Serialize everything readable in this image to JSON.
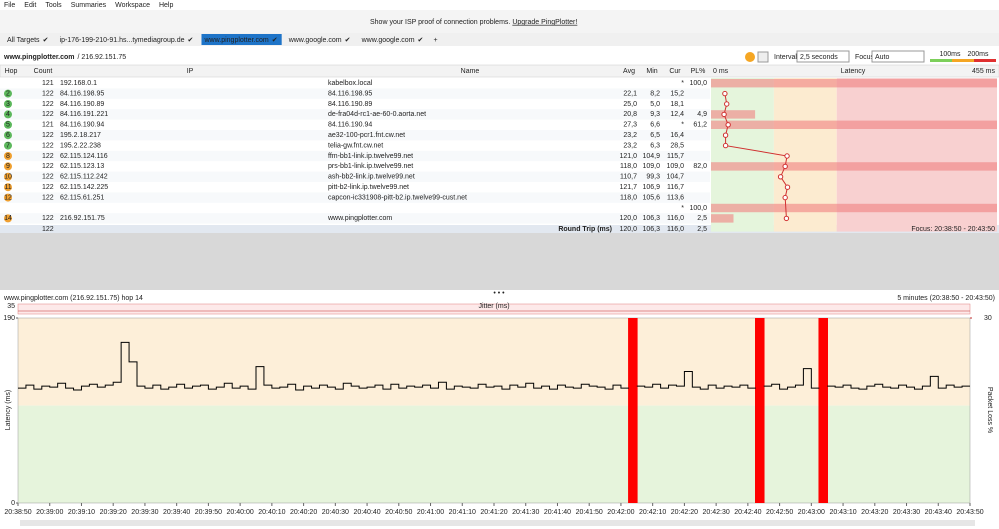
{
  "menu": [
    "File",
    "Edit",
    "Tools",
    "Summaries",
    "Workspace",
    "Help"
  ],
  "banner": {
    "text": "Show your ISP proof of connection problems.",
    "link": "Upgrade PingPlotter!"
  },
  "tabs": [
    "All Targets",
    "ip-176-199-210-91.hs...tymediagroup.de",
    "www.pingplotter.com",
    "www.google.com",
    "www.google.com"
  ],
  "new_tab": "+",
  "target": {
    "host": "www.pingplotter.com",
    "ip": "/ 216.92.151.75"
  },
  "toolbar": {
    "interval_label": "Interval",
    "interval": "2,5 seconds",
    "focus_label": "Focus",
    "focus": "Auto",
    "thresholds": [
      {
        "value": 100,
        "label": "100ms"
      },
      {
        "value": 200,
        "label": "200ms"
      }
    ]
  },
  "table": {
    "headers": [
      "Hop",
      "Count",
      "IP",
      "Name",
      "Avg",
      "Min",
      "Cur",
      "PL%",
      "Latency"
    ],
    "latency_axis": [
      {
        "value": 0,
        "label": "0 ms"
      },
      {
        "value": 455,
        "label": "455 ms"
      }
    ],
    "rows": [
      [
        null,
        "121",
        "192.168.0.1",
        "kabelbox.local",
        null,
        null,
        "*",
        "100,0"
      ],
      [
        "2",
        "122",
        "84.116.198.95",
        "84.116.198.95",
        "22,1",
        "8,2",
        "15,2",
        null
      ],
      [
        "3",
        "122",
        "84.116.190.89",
        "84.116.190.89",
        "25,0",
        "5,0",
        "18,1",
        null
      ],
      [
        "4",
        "122",
        "84.116.191.221",
        "de-fra04d-rc1-ae-60-0.aorta.net",
        "20,8",
        "9,3",
        "12,4",
        "4,9"
      ],
      [
        "5",
        "121",
        "84.116.190.94",
        "84.116.190.94",
        "27,3",
        "6,6",
        "*",
        "61,2"
      ],
      [
        "6",
        "122",
        "195.2.18.217",
        "ae32-100-pcr1.fnt.cw.net",
        "23,2",
        "6,5",
        "16,4",
        null
      ],
      [
        "7",
        "122",
        "195.2.22.238",
        "telia-gw.fnt.cw.net",
        "23,2",
        "6,3",
        "28,5",
        null
      ],
      [
        "8",
        "122",
        "62.115.124.116",
        "ffm-bb1-link.ip.twelve99.net",
        "121,0",
        "104,9",
        "115,7",
        null
      ],
      [
        "9",
        "122",
        "62.115.123.13",
        "prs-bb1-link.ip.twelve99.net",
        "118,0",
        "109,0",
        "109,0",
        "82,0"
      ],
      [
        "10",
        "122",
        "62.115.112.242",
        "ash-bb2-link.ip.twelve99.net",
        "110,7",
        "99,3",
        "104,7",
        null
      ],
      [
        "11",
        "122",
        "62.115.142.225",
        "pitt-b2-link.ip.twelve99.net",
        "121,7",
        "106,9",
        "116,7",
        null
      ],
      [
        "12",
        "122",
        "62.115.61.251",
        "capcon-ic331908-pitt-b2.ip.twelve99-cust.net",
        "118,0",
        "105,6",
        "113,6",
        null
      ],
      [
        null,
        null,
        null,
        null,
        null,
        null,
        "*",
        "100,0"
      ],
      [
        "14",
        "122",
        "216.92.151.75",
        "www.pingplotter.com",
        "120,0",
        "106,3",
        "116,0",
        "2,5"
      ]
    ],
    "summary": {
      "count": "122",
      "label": "Round Trip (ms)",
      "avg": "120,0",
      "min": "106,3",
      "cur": "116,0",
      "pl": "2,5",
      "focus": "Focus: 20:38:50 - 20:43:50"
    }
  },
  "chart_data": {
    "type": "line",
    "title": "www.pingplotter.com (216.92.151.75) hop 14",
    "subtitle": "5 minutes (20:38:50 - 20:43:50)",
    "y_label": "Latency (ms)",
    "y2_label": "Packet Loss %",
    "jitter_label": "Jitter (ms)",
    "jitter_max": 35,
    "ylim": [
      0,
      190
    ],
    "yticks": [
      0,
      190
    ],
    "y2lim": [
      0,
      30
    ],
    "y2ticks": [
      30
    ],
    "x_ticks": [
      "20:38:50",
      "20:39:00",
      "20:39:10",
      "20:39:20",
      "20:39:30",
      "20:39:40",
      "20:39:50",
      "20:40:00",
      "20:40:10",
      "20:40:20",
      "20:40:30",
      "20:40:40",
      "20:40:50",
      "20:41:00",
      "20:41:10",
      "20:41:20",
      "20:41:30",
      "20:41:40",
      "20:41:50",
      "20:42:00",
      "20:42:10",
      "20:42:20",
      "20:42:30",
      "20:42:40",
      "20:42:50",
      "20:43:00",
      "20:43:10",
      "20:43:20",
      "20:43:30",
      "20:43:40",
      "20:43:50"
    ],
    "latency": {
      "color": "#000000",
      "values": [
        118,
        121,
        117,
        120,
        119,
        123,
        118,
        116,
        120,
        122,
        119,
        121,
        124,
        165,
        145,
        120,
        118,
        121,
        117,
        119,
        122,
        118,
        120,
        121,
        117,
        119,
        123,
        118,
        120,
        117,
        140,
        121,
        118,
        119,
        122,
        116,
        120,
        118,
        121,
        119,
        117,
        123,
        120,
        118,
        119,
        121,
        117,
        122,
        118,
        120,
        119,
        121,
        118,
        124,
        117,
        120,
        119,
        118,
        122,
        119,
        120,
        117,
        121,
        119,
        123,
        118,
        120,
        117,
        121,
        119,
        118,
        122,
        120,
        119,
        117,
        121,
        118,
        null,
        120,
        119,
        122,
        118,
        121,
        120,
        135,
        119,
        117,
        121,
        118,
        120,
        119,
        121,
        118,
        null,
        120,
        122,
        117,
        119,
        121,
        138,
        118,
        null,
        120,
        119,
        121,
        118,
        117,
        120,
        122,
        119,
        118,
        121,
        119,
        117,
        120,
        130,
        118,
        121,
        119,
        120
      ]
    },
    "packet_loss": {
      "color": "#ff0000",
      "axis": "y2",
      "values": [
        0,
        0,
        0,
        0,
        0,
        0,
        0,
        0,
        0,
        0,
        0,
        0,
        0,
        0,
        0,
        0,
        0,
        0,
        0,
        0,
        0,
        0,
        0,
        0,
        0,
        0,
        0,
        0,
        0,
        0,
        0,
        0,
        0,
        0,
        0,
        0,
        0,
        0,
        0,
        0,
        0,
        0,
        0,
        0,
        0,
        0,
        0,
        0,
        0,
        0,
        0,
        0,
        0,
        0,
        0,
        0,
        0,
        0,
        0,
        0,
        0,
        0,
        0,
        0,
        0,
        0,
        0,
        0,
        0,
        0,
        0,
        0,
        0,
        0,
        0,
        0,
        0,
        100,
        0,
        0,
        0,
        0,
        0,
        0,
        0,
        0,
        0,
        0,
        0,
        0,
        0,
        0,
        0,
        100,
        0,
        0,
        0,
        0,
        0,
        0,
        0,
        100,
        0,
        0,
        0,
        0,
        0,
        0,
        0,
        0,
        0,
        0,
        0,
        0,
        0,
        0,
        0,
        0,
        0,
        0
      ]
    }
  }
}
